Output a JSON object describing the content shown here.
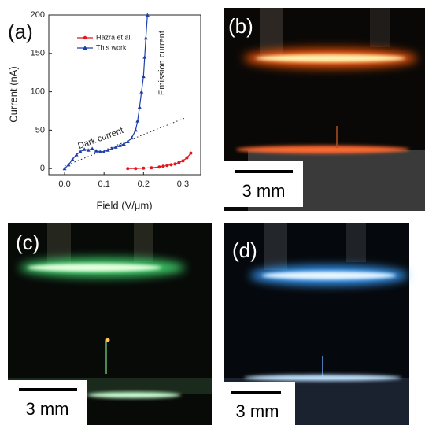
{
  "chart_data": {
    "type": "line",
    "panel_label": "(a)",
    "x_label": "Field (V/μm)",
    "y_label": "Current (nA)",
    "annotations": [
      "Dark current",
      "Emission current"
    ],
    "xlim": [
      -0.04,
      0.345
    ],
    "ylim": [
      -8,
      200
    ],
    "xticks": [
      {
        "value": 0,
        "label": "0.0"
      },
      0.1,
      0.2,
      0.3
    ],
    "yticks": [
      0,
      50,
      100,
      150,
      200
    ],
    "series": [
      {
        "name": "Hazra et al.",
        "color": "#e8141c",
        "marker": "circle",
        "x": [
          0.16,
          0.18,
          0.2,
          0.22,
          0.24,
          0.25,
          0.26,
          0.27,
          0.28,
          0.29,
          0.3,
          0.31,
          0.32
        ],
        "values": [
          0,
          0,
          0.5,
          1,
          2,
          3,
          4,
          5,
          6,
          8,
          10,
          14,
          20
        ]
      },
      {
        "name": "This work",
        "color": "#1f3fa8",
        "marker": "triangle",
        "x": [
          0,
          0.01,
          0.02,
          0.03,
          0.04,
          0.05,
          0.06,
          0.07,
          0.08,
          0.09,
          0.1,
          0.11,
          0.12,
          0.13,
          0.14,
          0.15,
          0.16,
          0.17,
          0.18,
          0.185,
          0.19,
          0.195,
          0.2,
          0.203,
          0.206,
          0.21
        ],
        "values": [
          0,
          5,
          12,
          18,
          22,
          25,
          24,
          26,
          23,
          22,
          22,
          24,
          26,
          28,
          30,
          32,
          35,
          40,
          50,
          62,
          80,
          100,
          120,
          145,
          170,
          200
        ]
      }
    ]
  },
  "panels": [
    {
      "label": "(b)",
      "scale": "3 mm"
    },
    {
      "label": "(c)",
      "scale": "3 mm"
    },
    {
      "label": "(d)",
      "scale": "3 mm"
    }
  ]
}
